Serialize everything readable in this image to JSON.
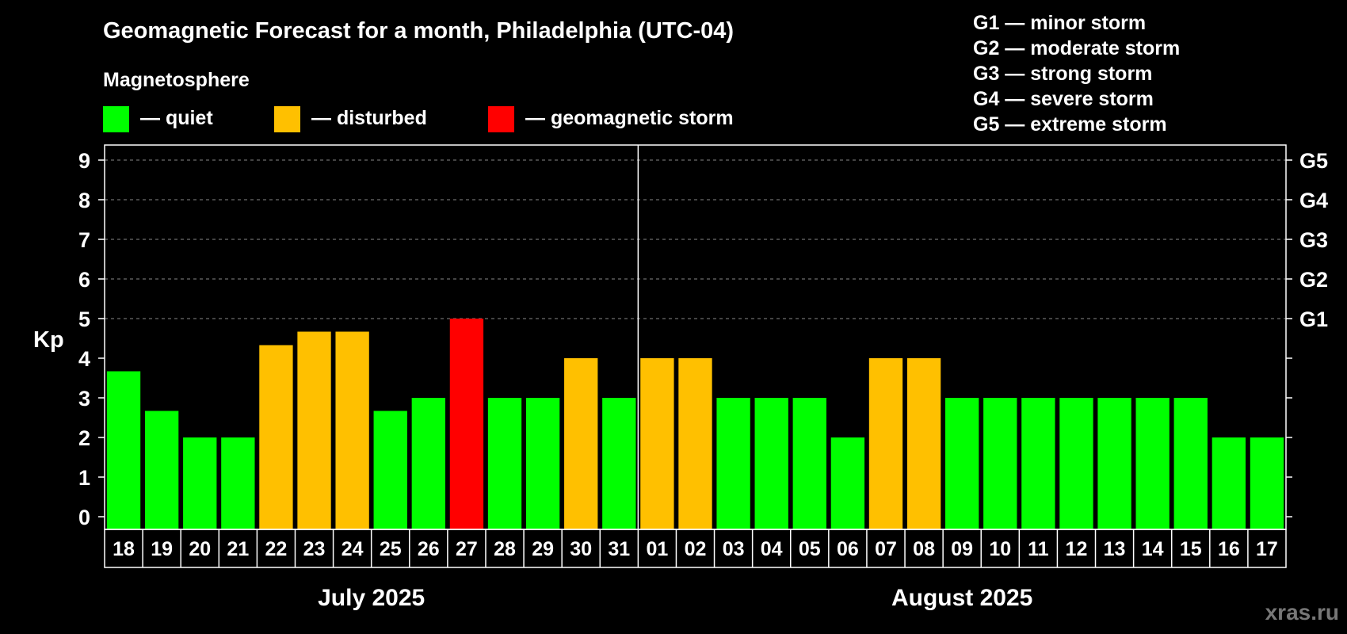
{
  "title": "Geomagnetic Forecast for a month, Philadelphia (UTC-04)",
  "legend": {
    "heading": "Magnetosphere",
    "items": [
      {
        "label": "— quiet",
        "color": "#00ff00"
      },
      {
        "label": "— disturbed",
        "color": "#ffc000"
      },
      {
        "label": "— geomagnetic storm",
        "color": "#ff0000"
      }
    ]
  },
  "g_scale": [
    "G1 — minor storm",
    "G2 — moderate storm",
    "G3 — strong storm",
    "G4 — severe storm",
    "G5 — extreme storm"
  ],
  "watermark": "xras.ru",
  "chart_data": {
    "type": "bar",
    "ylabel": "Kp",
    "ylim": [
      0,
      9
    ],
    "yticks": [
      0,
      1,
      2,
      3,
      4,
      5,
      6,
      7,
      8,
      9
    ],
    "right_ticks": [
      {
        "value": 5,
        "label": "G1"
      },
      {
        "value": 6,
        "label": "G2"
      },
      {
        "value": 7,
        "label": "G3"
      },
      {
        "value": 8,
        "label": "G4"
      },
      {
        "value": 9,
        "label": "G5"
      }
    ],
    "grid": "dashed horizontal at Kp 5–9",
    "categories": [
      "18",
      "19",
      "20",
      "21",
      "22",
      "23",
      "24",
      "25",
      "26",
      "27",
      "28",
      "29",
      "30",
      "31",
      "01",
      "02",
      "03",
      "04",
      "05",
      "06",
      "07",
      "08",
      "09",
      "10",
      "11",
      "12",
      "13",
      "14",
      "15",
      "16",
      "17"
    ],
    "values": [
      3.67,
      2.67,
      2,
      2,
      4.33,
      4.67,
      4.67,
      2.67,
      3,
      5,
      3,
      3,
      4,
      3,
      4,
      4,
      3,
      3,
      3,
      2,
      4,
      4,
      3,
      3,
      3,
      3,
      3,
      3,
      3,
      2,
      2
    ],
    "levels": [
      "quiet",
      "quiet",
      "quiet",
      "quiet",
      "disturbed",
      "disturbed",
      "disturbed",
      "quiet",
      "quiet",
      "storm",
      "quiet",
      "quiet",
      "disturbed",
      "quiet",
      "disturbed",
      "disturbed",
      "quiet",
      "quiet",
      "quiet",
      "quiet",
      "disturbed",
      "disturbed",
      "quiet",
      "quiet",
      "quiet",
      "quiet",
      "quiet",
      "quiet",
      "quiet",
      "quiet",
      "quiet"
    ],
    "level_colors": {
      "quiet": "#00ff00",
      "disturbed": "#ffc000",
      "storm": "#ff0000"
    },
    "months": [
      {
        "label": "July 2025",
        "start_index": 0,
        "count": 14
      },
      {
        "label": "August 2025",
        "start_index": 14,
        "count": 17
      }
    ]
  }
}
